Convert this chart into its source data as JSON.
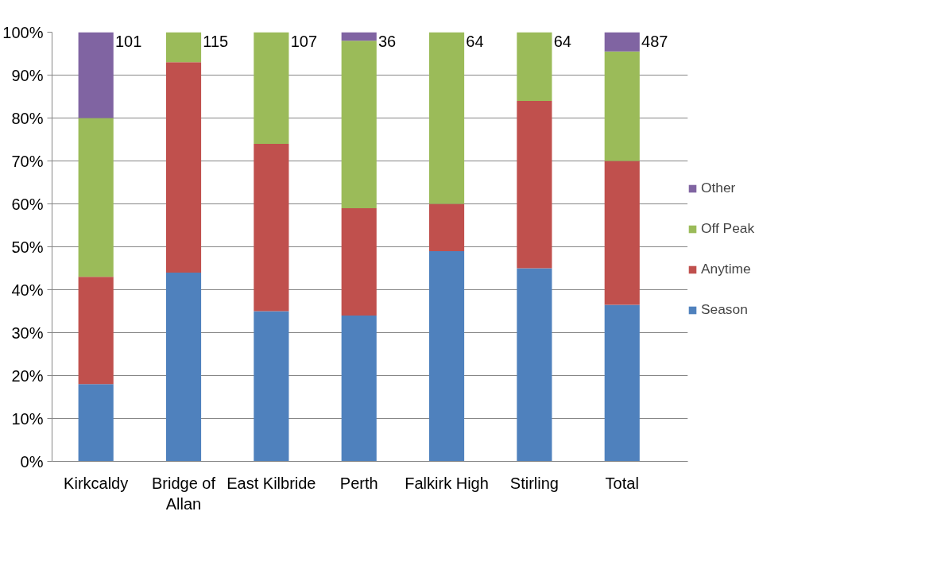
{
  "chart_data": {
    "type": "bar",
    "stacked": true,
    "categories": [
      "Kirkcaldy",
      "Bridge of Allan",
      "East Kilbride",
      "Perth",
      "Falkirk High",
      "Stirling",
      "Total"
    ],
    "series": [
      {
        "name": "Season",
        "color": "#4f81bd",
        "values": [
          18,
          44,
          35,
          34,
          49,
          45,
          36.5
        ]
      },
      {
        "name": "Anytime",
        "color": "#c0504d",
        "values": [
          25,
          49,
          39,
          25,
          11,
          39,
          33.5
        ]
      },
      {
        "name": "Off Peak",
        "color": "#9bbb59",
        "values": [
          37,
          7,
          26,
          39,
          40,
          16,
          25.5
        ]
      },
      {
        "name": "Other",
        "color": "#8064a2",
        "values": [
          20,
          0,
          0,
          2,
          0,
          0,
          4.5
        ]
      }
    ],
    "ylim": [
      0,
      100
    ],
    "yticks": [
      {
        "value": 0,
        "label": "0%"
      },
      {
        "value": 10,
        "label": "10%"
      },
      {
        "value": 20,
        "label": "20%"
      },
      {
        "value": 30,
        "label": "30%"
      },
      {
        "value": 40,
        "label": "40%"
      },
      {
        "value": 50,
        "label": "50%"
      },
      {
        "value": 60,
        "label": "60%"
      },
      {
        "value": 70,
        "label": "70%"
      },
      {
        "value": 80,
        "label": "80%"
      },
      {
        "value": 90,
        "label": "90%"
      },
      {
        "value": 100,
        "label": "100%"
      }
    ],
    "annotations": [
      {
        "text": "101",
        "x": "Kirkcaldy",
        "y": 100
      },
      {
        "text": "115",
        "x": "Bridge of Allan",
        "y": 100
      },
      {
        "text": "107",
        "x": "East Kilbride",
        "y": 100
      },
      {
        "text": "36",
        "x": "Perth",
        "y": 100
      },
      {
        "text": "64",
        "x": "Falkirk High",
        "y": 100
      },
      {
        "text": "64",
        "x": "Stirling",
        "y": 100
      },
      {
        "text": "487",
        "x": "Total",
        "y": 100
      }
    ],
    "grid": "y",
    "legend": "right"
  }
}
